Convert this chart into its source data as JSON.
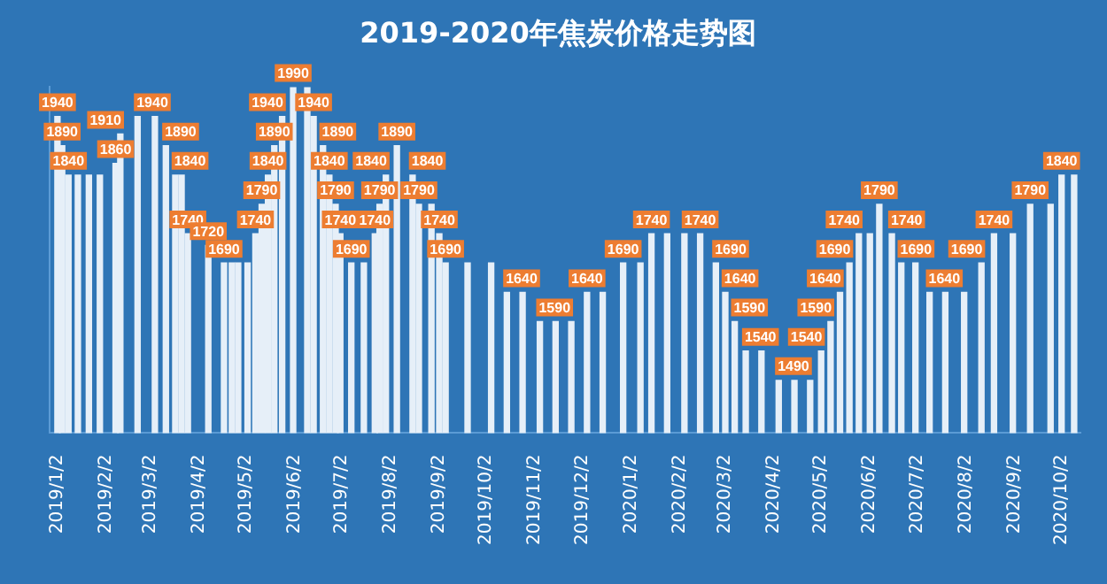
{
  "chart_data": {
    "type": "bar",
    "title": "2019-2020年焦炭价格走势图",
    "color": "#e6eff8",
    "grid": false,
    "legend": false,
    "xticks": [
      {
        "value": "2019-01-02",
        "label": "2019/1/2"
      },
      {
        "value": "2019-02-02",
        "label": "2019/2/2"
      },
      {
        "value": "2019-03-02",
        "label": "2019/3/2"
      },
      {
        "value": "2019-04-02",
        "label": "2019/4/2"
      },
      {
        "value": "2019-05-02",
        "label": "2019/5/2"
      },
      {
        "value": "2019-06-02",
        "label": "2019/6/2"
      },
      {
        "value": "2019-07-02",
        "label": "2019/7/2"
      },
      {
        "value": "2019-08-02",
        "label": "2019/8/2"
      },
      {
        "value": "2019-09-02",
        "label": "2019/9/2"
      },
      {
        "value": "2019-10-02",
        "label": "2019/10/2"
      },
      {
        "value": "2019-11-02",
        "label": "2019/11/2"
      },
      {
        "value": "2019-12-02",
        "label": "2019/12/2"
      },
      {
        "value": "2020-01-02",
        "label": "2020/1/2"
      },
      {
        "value": "2020-02-02",
        "label": "2020/2/2"
      },
      {
        "value": "2020-03-02",
        "label": "2020/3/2"
      },
      {
        "value": "2020-04-02",
        "label": "2020/4/2"
      },
      {
        "value": "2020-05-02",
        "label": "2020/5/2"
      },
      {
        "value": "2020-06-02",
        "label": "2020/6/2"
      },
      {
        "value": "2020-07-02",
        "label": "2020/7/2"
      },
      {
        "value": "2020-08-02",
        "label": "2020/8/2"
      },
      {
        "value": "2020-09-02",
        "label": "2020/9/2"
      },
      {
        "value": "2020-10-02",
        "label": "2020/10/2"
      }
    ],
    "xlim": [
      "2018-12-28",
      "2020-10-14"
    ],
    "ylim": [
      1400,
      1990
    ],
    "tick_labels": "x",
    "x": [
      "2019-01-02",
      "2019-01-05",
      "2019-01-09",
      "2019-01-15",
      "2019-01-22",
      "2019-01-29",
      "2019-02-08",
      "2019-02-11",
      "2019-02-22",
      "2019-03-05",
      "2019-03-12",
      "2019-03-18",
      "2019-03-22",
      "2019-03-26",
      "2019-04-08",
      "2019-04-18",
      "2019-04-23",
      "2019-04-27",
      "2019-05-03",
      "2019-05-08",
      "2019-05-12",
      "2019-05-16",
      "2019-05-20",
      "2019-05-25",
      "2019-06-01",
      "2019-06-10",
      "2019-06-14",
      "2019-06-20",
      "2019-06-24",
      "2019-06-28",
      "2019-07-01",
      "2019-07-08",
      "2019-07-16",
      "2019-07-23",
      "2019-07-26",
      "2019-07-30",
      "2019-08-06",
      "2019-08-16",
      "2019-08-20",
      "2019-08-28",
      "2019-09-02",
      "2019-09-06",
      "2019-09-20",
      "2019-10-05",
      "2019-10-15",
      "2019-10-25",
      "2019-11-05",
      "2019-11-15",
      "2019-11-25",
      "2019-12-05",
      "2019-12-15",
      "2019-12-28",
      "2020-01-08",
      "2020-01-15",
      "2020-01-25",
      "2020-02-05",
      "2020-02-15",
      "2020-02-25",
      "2020-03-02",
      "2020-03-08",
      "2020-03-15",
      "2020-03-25",
      "2020-04-05",
      "2020-04-15",
      "2020-04-25",
      "2020-05-02",
      "2020-05-08",
      "2020-05-14",
      "2020-05-20",
      "2020-05-26",
      "2020-06-02",
      "2020-06-08",
      "2020-06-16",
      "2020-06-22",
      "2020-07-01",
      "2020-07-10",
      "2020-07-20",
      "2020-08-01",
      "2020-08-12",
      "2020-08-20",
      "2020-09-01",
      "2020-09-12",
      "2020-09-25",
      "2020-10-02",
      "2020-10-10"
    ],
    "values": [
      1940,
      1890,
      1840,
      1840,
      1840,
      1840,
      1860,
      1910,
      1940,
      1940,
      1890,
      1840,
      1840,
      1740,
      1720,
      1690,
      1690,
      1690,
      1690,
      1740,
      1790,
      1840,
      1890,
      1940,
      1990,
      1990,
      1940,
      1890,
      1840,
      1790,
      1740,
      1690,
      1690,
      1740,
      1790,
      1840,
      1890,
      1840,
      1790,
      1790,
      1740,
      1690,
      1690,
      1690,
      1640,
      1640,
      1590,
      1590,
      1590,
      1640,
      1640,
      1690,
      1690,
      1740,
      1740,
      1740,
      1740,
      1690,
      1640,
      1590,
      1540,
      1540,
      1490,
      1490,
      1490,
      1540,
      1590,
      1640,
      1690,
      1740,
      1740,
      1790,
      1740,
      1690,
      1690,
      1640,
      1640,
      1640,
      1690,
      1740,
      1740,
      1790,
      1790,
      1840,
      1840
    ],
    "value_labels": [
      "1940",
      "1890",
      "1840",
      null,
      null,
      null,
      "1860",
      "1910",
      "1940",
      null,
      "1890",
      "1840",
      null,
      "1740",
      "1720",
      "1690",
      null,
      null,
      null,
      "1740",
      "1790",
      "1840",
      "1890",
      "1940",
      "1990",
      null,
      "1940",
      "1890",
      "1840",
      "1790",
      "1740",
      "1690",
      null,
      "1740",
      "1790",
      "1840",
      "1890",
      "1840",
      "1790",
      null,
      "1740",
      "1690",
      null,
      null,
      "1640",
      null,
      "1590",
      null,
      null,
      "1640",
      null,
      "1690",
      null,
      "1740",
      null,
      null,
      "1740",
      "1690",
      "1640",
      "1590",
      "1540",
      null,
      "1490",
      null,
      null,
      "1540",
      "1590",
      "1640",
      "1690",
      "1740",
      null,
      "1790",
      "1740",
      "1690",
      null,
      "1640",
      null,
      null,
      "1690",
      "1740",
      null,
      "1790",
      null,
      "1840",
      null
    ]
  }
}
